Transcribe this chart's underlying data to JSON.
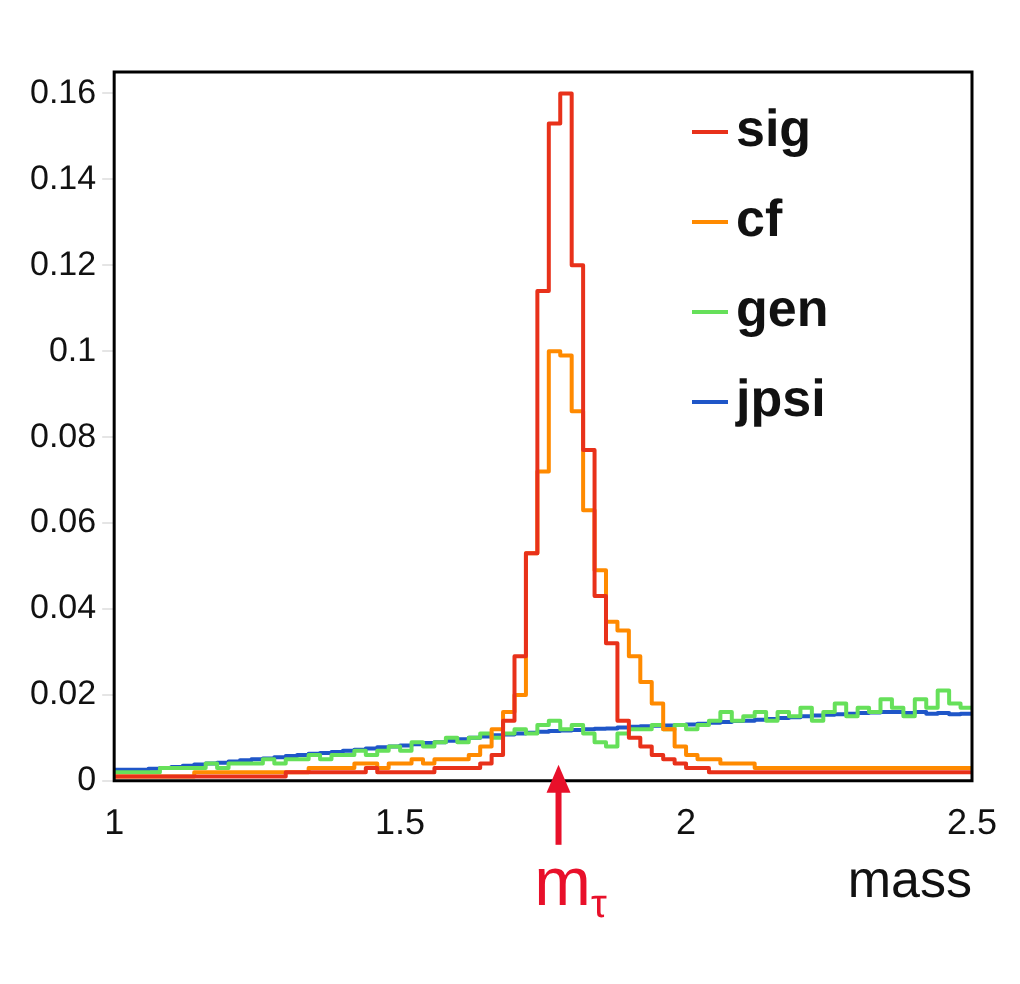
{
  "chart_data": {
    "type": "histogram",
    "xlabel": "mass",
    "bins": [
      1,
      1.02,
      1.04,
      1.06,
      1.08,
      1.1,
      1.12,
      1.14,
      1.16,
      1.18,
      1.2,
      1.22,
      1.24,
      1.26,
      1.28,
      1.3,
      1.32,
      1.34,
      1.36,
      1.38,
      1.4,
      1.42,
      1.44,
      1.46,
      1.48,
      1.5,
      1.52,
      1.54,
      1.56,
      1.58,
      1.6,
      1.62,
      1.64,
      1.66,
      1.68,
      1.7,
      1.72,
      1.74,
      1.76,
      1.78,
      1.8,
      1.82,
      1.84,
      1.86,
      1.88,
      1.9,
      1.92,
      1.94,
      1.96,
      1.98,
      2,
      2.02,
      2.04,
      2.06,
      2.08,
      2.1,
      2.12,
      2.14,
      2.16,
      2.18,
      2.2,
      2.22,
      2.24,
      2.26,
      2.28,
      2.3,
      2.32,
      2.34,
      2.36,
      2.38,
      2.4,
      2.42,
      2.44,
      2.46,
      2.48,
      2.5
    ],
    "series": [
      {
        "name": "sig",
        "color": "#e8311a",
        "values": [
          0.001,
          0.001,
          0.001,
          0.001,
          0.001,
          0.001,
          0.001,
          0.001,
          0.001,
          0.001,
          0.001,
          0.001,
          0.001,
          0.001,
          0.001,
          0.002,
          0.002,
          0.002,
          0.002,
          0.002,
          0.002,
          0.002,
          0.003,
          0.002,
          0.002,
          0.002,
          0.002,
          0.002,
          0.003,
          0.003,
          0.003,
          0.003,
          0.004,
          0.006,
          0.014,
          0.029,
          0.053,
          0.114,
          0.153,
          0.16,
          0.12,
          0.077,
          0.043,
          0.032,
          0.014,
          0.01,
          0.008,
          0.006,
          0.005,
          0.004,
          0.003,
          0.003,
          0.002,
          0.002,
          0.002,
          0.002,
          0.002,
          0.002,
          0.002,
          0.002,
          0.002,
          0.002,
          0.002,
          0.002,
          0.002,
          0.002,
          0.002,
          0.002,
          0.002,
          0.002,
          0.002,
          0.002,
          0.002,
          0.002,
          0.002
        ]
      },
      {
        "name": "cf",
        "color": "#ff8a00",
        "values": [
          0.001,
          0.001,
          0.001,
          0.001,
          0.001,
          0.001,
          0.001,
          0.002,
          0.002,
          0.002,
          0.002,
          0.002,
          0.002,
          0.002,
          0.002,
          0.002,
          0.002,
          0.003,
          0.003,
          0.003,
          0.003,
          0.004,
          0.004,
          0.003,
          0.004,
          0.004,
          0.005,
          0.004,
          0.005,
          0.005,
          0.005,
          0.006,
          0.008,
          0.012,
          0.016,
          0.02,
          0.053,
          0.072,
          0.1,
          0.099,
          0.086,
          0.063,
          0.049,
          0.037,
          0.035,
          0.029,
          0.023,
          0.018,
          0.012,
          0.008,
          0.006,
          0.005,
          0.005,
          0.004,
          0.004,
          0.004,
          0.003,
          0.003,
          0.003,
          0.003,
          0.003,
          0.003,
          0.003,
          0.003,
          0.003,
          0.003,
          0.003,
          0.003,
          0.003,
          0.003,
          0.003,
          0.003,
          0.003,
          0.003,
          0.003
        ]
      },
      {
        "name": "gen",
        "color": "#66e05a",
        "values": [
          0.002,
          0.002,
          0.002,
          0.002,
          0.003,
          0.003,
          0.003,
          0.003,
          0.004,
          0.003,
          0.004,
          0.004,
          0.004,
          0.005,
          0.004,
          0.005,
          0.005,
          0.006,
          0.005,
          0.006,
          0.006,
          0.007,
          0.006,
          0.007,
          0.008,
          0.007,
          0.009,
          0.008,
          0.009,
          0.01,
          0.009,
          0.01,
          0.011,
          0.01,
          0.011,
          0.012,
          0.011,
          0.013,
          0.014,
          0.012,
          0.013,
          0.011,
          0.009,
          0.008,
          0.011,
          0.012,
          0.012,
          0.013,
          0.012,
          0.013,
          0.012,
          0.013,
          0.014,
          0.016,
          0.014,
          0.015,
          0.016,
          0.014,
          0.016,
          0.015,
          0.017,
          0.014,
          0.016,
          0.018,
          0.015,
          0.017,
          0.016,
          0.019,
          0.017,
          0.015,
          0.019,
          0.017,
          0.021,
          0.018,
          0.017
        ]
      },
      {
        "name": "jpsi",
        "color": "#1f56c8",
        "values": [
          0.0026,
          0.0026,
          0.0026,
          0.0028,
          0.003,
          0.0032,
          0.0035,
          0.0038,
          0.004,
          0.0042,
          0.0045,
          0.0048,
          0.005,
          0.0052,
          0.0055,
          0.0058,
          0.006,
          0.0063,
          0.0065,
          0.0067,
          0.007,
          0.0072,
          0.0075,
          0.0078,
          0.008,
          0.0082,
          0.0085,
          0.0088,
          0.009,
          0.0093,
          0.0097,
          0.01,
          0.0103,
          0.0106,
          0.0108,
          0.011,
          0.0112,
          0.0114,
          0.0116,
          0.0117,
          0.0118,
          0.012,
          0.0121,
          0.0122,
          0.0124,
          0.0126,
          0.0127,
          0.0128,
          0.0129,
          0.013,
          0.0131,
          0.0133,
          0.0135,
          0.0137,
          0.0139,
          0.014,
          0.0142,
          0.0144,
          0.0146,
          0.0148,
          0.015,
          0.0152,
          0.0154,
          0.0155,
          0.0156,
          0.0158,
          0.0159,
          0.016,
          0.016,
          0.0158,
          0.016,
          0.0156,
          0.0158,
          0.0155,
          0.0156
        ]
      }
    ],
    "xlim": [
      1,
      2.5
    ],
    "xticks": [
      1,
      1.5,
      2,
      2.5
    ],
    "ylim": [
      0,
      0.165
    ],
    "yticks": [
      0,
      0.02,
      0.04,
      0.06,
      0.08,
      0.1,
      0.12,
      0.14,
      0.16
    ],
    "legend": "top right",
    "grid": false,
    "annotations": [
      {
        "text": "m$_{τ}$",
        "x": 1.777,
        "y": 0
      }
    ]
  }
}
